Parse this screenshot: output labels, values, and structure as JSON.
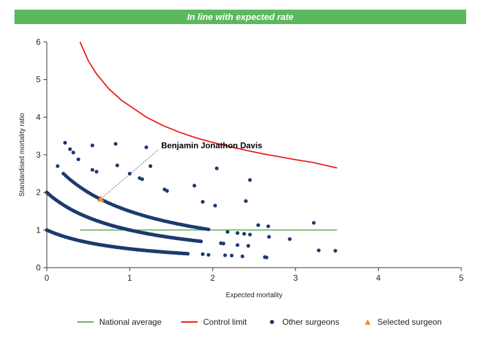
{
  "banner": {
    "text": "In line with expected rate",
    "color": "#5cb85c"
  },
  "chart_data": {
    "type": "scatter",
    "xlabel": "Expected mortality",
    "ylabel": "Standardised mortality ratio",
    "xlim": [
      0,
      5
    ],
    "ylim": [
      0,
      6
    ],
    "xticks": [
      "0",
      "1",
      "2",
      "3",
      "4",
      "5"
    ],
    "yticks": [
      "0",
      "1",
      "2",
      "3",
      "4",
      "5",
      "6"
    ],
    "grid": false,
    "legend_position": "bottom",
    "legend": [
      {
        "label": "National average",
        "type": "line",
        "color": "#5cb85c"
      },
      {
        "label": "Control limit",
        "type": "line",
        "color": "#e8191c"
      },
      {
        "label": "Other surgeons",
        "type": "dot",
        "color": "#1c3a6e"
      },
      {
        "label": "Selected surgeon",
        "type": "triangle",
        "color": "#f28e1c"
      }
    ],
    "series": [
      {
        "name": "National average",
        "type": "line",
        "color": "#5cb85c",
        "x": [
          0.4,
          3.5
        ],
        "y": [
          1,
          1
        ]
      },
      {
        "name": "Control limit",
        "type": "line",
        "color": "#e8191c",
        "x": [
          0.4,
          0.5,
          0.6,
          0.75,
          0.9,
          1.0,
          1.2,
          1.4,
          1.6,
          1.8,
          2.0,
          2.2,
          2.4,
          2.6,
          2.8,
          3.0,
          3.2,
          3.5
        ],
        "y": [
          6.0,
          5.5,
          5.15,
          4.75,
          4.45,
          4.3,
          4.0,
          3.78,
          3.6,
          3.45,
          3.33,
          3.22,
          3.12,
          3.03,
          2.95,
          2.87,
          2.8,
          2.65
        ]
      },
      {
        "name": "Other surgeons",
        "type": "scatter",
        "color": "#1c3a6e",
        "curves": [
          {
            "k": 1,
            "x_from": 0.0,
            "x_to": 1.7,
            "step": 0.02
          },
          {
            "k": 2,
            "x_from": 0.0,
            "x_to": 1.87,
            "step": 0.02
          },
          {
            "k": 3,
            "x_from": 0.2,
            "x_to": 1.95,
            "step": 0.025
          }
        ],
        "points": [
          {
            "x": 0.22,
            "y": 3.32
          },
          {
            "x": 0.28,
            "y": 3.15
          },
          {
            "x": 0.32,
            "y": 3.06
          },
          {
            "x": 0.38,
            "y": 2.88
          },
          {
            "x": 0.55,
            "y": 3.25
          },
          {
            "x": 0.83,
            "y": 3.29
          },
          {
            "x": 1.2,
            "y": 3.2
          },
          {
            "x": 0.13,
            "y": 2.7
          },
          {
            "x": 0.55,
            "y": 2.6
          },
          {
            "x": 0.6,
            "y": 2.55
          },
          {
            "x": 0.85,
            "y": 2.72
          },
          {
            "x": 1.25,
            "y": 2.7
          },
          {
            "x": 1.0,
            "y": 2.5
          },
          {
            "x": 1.12,
            "y": 2.38
          },
          {
            "x": 1.15,
            "y": 2.35
          },
          {
            "x": 2.05,
            "y": 2.64
          },
          {
            "x": 2.45,
            "y": 2.33
          },
          {
            "x": 1.78,
            "y": 2.18
          },
          {
            "x": 1.42,
            "y": 2.08
          },
          {
            "x": 1.45,
            "y": 2.04
          },
          {
            "x": 2.4,
            "y": 1.77
          },
          {
            "x": 1.88,
            "y": 1.75
          },
          {
            "x": 2.03,
            "y": 1.65
          },
          {
            "x": 3.22,
            "y": 1.19
          },
          {
            "x": 2.55,
            "y": 1.13
          },
          {
            "x": 2.67,
            "y": 1.1
          },
          {
            "x": 2.18,
            "y": 0.95
          },
          {
            "x": 2.3,
            "y": 0.92
          },
          {
            "x": 2.38,
            "y": 0.9
          },
          {
            "x": 2.45,
            "y": 0.88
          },
          {
            "x": 2.68,
            "y": 0.82
          },
          {
            "x": 2.93,
            "y": 0.76
          },
          {
            "x": 2.1,
            "y": 0.65
          },
          {
            "x": 2.13,
            "y": 0.64
          },
          {
            "x": 2.3,
            "y": 0.6
          },
          {
            "x": 2.43,
            "y": 0.58
          },
          {
            "x": 3.28,
            "y": 0.46
          },
          {
            "x": 3.48,
            "y": 0.45
          },
          {
            "x": 2.23,
            "y": 0.32
          },
          {
            "x": 2.36,
            "y": 0.3
          },
          {
            "x": 2.15,
            "y": 0.33
          },
          {
            "x": 2.63,
            "y": 0.28
          },
          {
            "x": 2.65,
            "y": 0.27
          },
          {
            "x": 1.95,
            "y": 0.34
          },
          {
            "x": 1.88,
            "y": 0.36
          }
        ]
      },
      {
        "name": "Selected surgeon",
        "type": "scatter",
        "marker": "triangle",
        "color": "#f28e1c",
        "x": [
          0.65
        ],
        "y": [
          1.83
        ]
      }
    ],
    "annotations": [
      {
        "text": "Benjamin Jonathon Davis",
        "x": 0.65,
        "y": 1.83,
        "label_x": 1.38,
        "label_y": 3.17
      }
    ]
  }
}
